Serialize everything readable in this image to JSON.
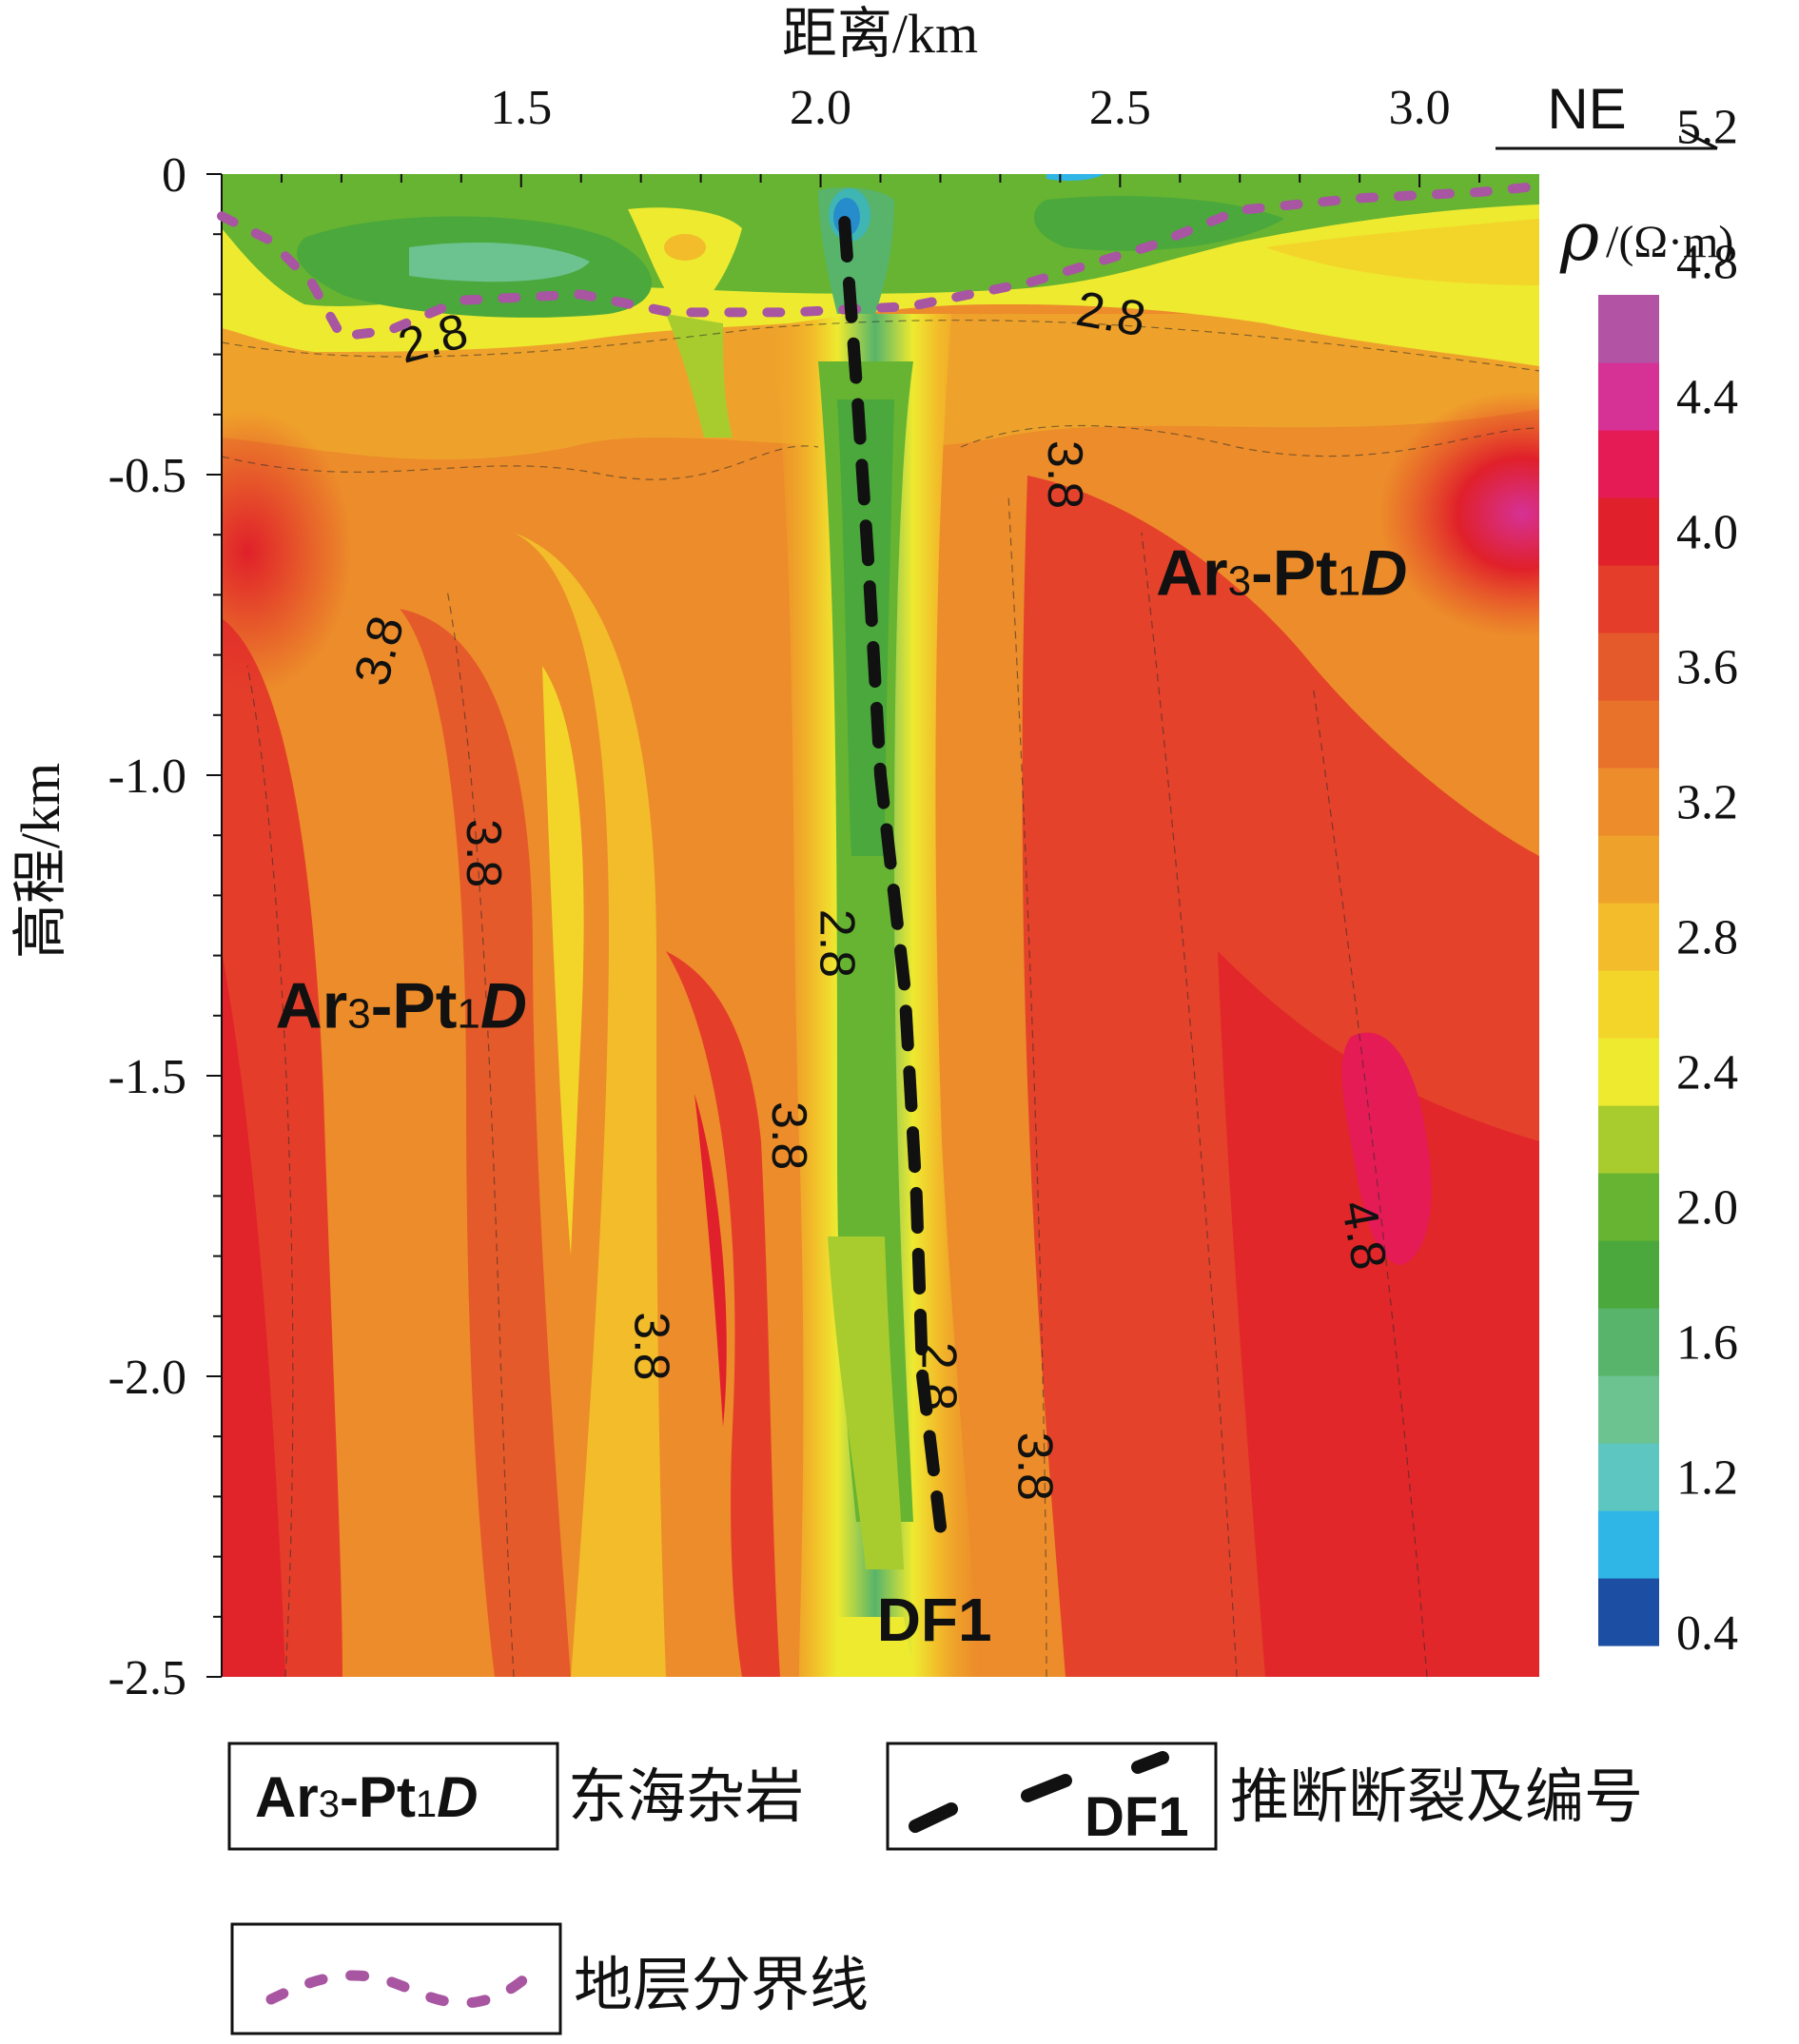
{
  "chart_data": {
    "type": "heatmap",
    "title": "",
    "x_axis": {
      "label": "距离/km",
      "ticks": [
        "1.5",
        "2.0",
        "2.5",
        "3.0"
      ],
      "tick_values": [
        1.5,
        2.0,
        2.5,
        3.0
      ],
      "range": [
        1.0,
        3.2
      ],
      "direction_label": "NE"
    },
    "y_axis": {
      "label": "高程/km",
      "ticks": [
        "0",
        "-0.5",
        "-1.0",
        "-1.5",
        "-2.0",
        "-2.5"
      ],
      "tick_values": [
        0,
        -0.5,
        -1.0,
        -1.5,
        -2.0,
        -2.5
      ],
      "range": [
        -2.5,
        0
      ]
    },
    "colorbar": {
      "label_symbol": "ρ",
      "label_unit": "/(Ω·m)",
      "tick_labels": [
        "0.4",
        "1.2",
        "1.6",
        "2.0",
        "2.4",
        "2.8",
        "3.2",
        "3.6",
        "4.0",
        "4.4",
        "4.8",
        "5.2"
      ],
      "tick_values": [
        0.4,
        1.2,
        1.6,
        2.0,
        2.4,
        2.8,
        3.2,
        3.6,
        4.0,
        4.4,
        4.8,
        5.2
      ],
      "colors": [
        "#1c4fa3",
        "#2fb5e6",
        "#5ec6c0",
        "#6cc38f",
        "#58b46a",
        "#4aa83c",
        "#66b432",
        "#a8cc2e",
        "#eeea30",
        "#f3d52a",
        "#f2bc2a",
        "#efa22b",
        "#ec8c2a",
        "#e8722a",
        "#e55a2a",
        "#e43e2a",
        "#e0202a",
        "#e51b56",
        "#d63195",
        "#b254a3"
      ]
    },
    "contour_labels": [
      {
        "text": "2.8",
        "x": 1.36,
        "y": -0.3
      },
      {
        "text": "2.8",
        "x": 2.48,
        "y": -0.26
      },
      {
        "text": "3.8",
        "x": 2.38,
        "y": -0.5
      },
      {
        "text": "3.8",
        "x": 1.29,
        "y": -0.8
      },
      {
        "text": "3.8",
        "x": 1.41,
        "y": -1.13
      },
      {
        "text": "2.8",
        "x": 2.0,
        "y": -1.28
      },
      {
        "text": "3.8",
        "x": 1.92,
        "y": -1.6
      },
      {
        "text": "4.8",
        "x": 2.88,
        "y": -1.77
      },
      {
        "text": "3.8",
        "x": 1.69,
        "y": -1.95
      },
      {
        "text": "2.8",
        "x": 2.17,
        "y": -2.0
      },
      {
        "text": "3.8",
        "x": 2.33,
        "y": -2.15
      }
    ],
    "unit_labels": [
      {
        "main": "Ar",
        "sub1": "3",
        "mid": "-Pt",
        "sub2": "1",
        "ital": "D",
        "x": 2.56,
        "y": -0.7
      },
      {
        "main": "Ar",
        "sub1": "3",
        "mid": "-Pt",
        "sub2": "1",
        "ital": "D",
        "x": 1.09,
        "y": -1.42
      }
    ],
    "fault": {
      "label": "DF1",
      "label_x": 2.19,
      "label_y": -2.44,
      "path": [
        {
          "x": 2.04,
          "y": -0.08
        },
        {
          "x": 2.06,
          "y": -0.35
        },
        {
          "x": 2.08,
          "y": -0.65
        },
        {
          "x": 2.1,
          "y": -1.0
        },
        {
          "x": 2.14,
          "y": -1.35
        },
        {
          "x": 2.16,
          "y": -1.7
        },
        {
          "x": 2.17,
          "y": -2.0
        },
        {
          "x": 2.2,
          "y": -2.25
        }
      ]
    },
    "stratum_boundary": [
      {
        "x": 1.0,
        "y": -0.07
      },
      {
        "x": 1.08,
        "y": -0.11
      },
      {
        "x": 1.15,
        "y": -0.18
      },
      {
        "x": 1.2,
        "y": -0.27
      },
      {
        "x": 1.28,
        "y": -0.26
      },
      {
        "x": 1.4,
        "y": -0.21
      },
      {
        "x": 1.6,
        "y": -0.2
      },
      {
        "x": 1.75,
        "y": -0.23
      },
      {
        "x": 1.95,
        "y": -0.23
      },
      {
        "x": 2.15,
        "y": -0.22
      },
      {
        "x": 2.35,
        "y": -0.18
      },
      {
        "x": 2.55,
        "y": -0.12
      },
      {
        "x": 2.7,
        "y": -0.06
      },
      {
        "x": 2.9,
        "y": -0.04
      },
      {
        "x": 3.1,
        "y": -0.03
      },
      {
        "x": 3.2,
        "y": -0.02
      }
    ]
  },
  "legend": {
    "items": [
      {
        "key": "unit",
        "symbol_main": "Ar",
        "symbol_sub1": "3",
        "symbol_mid": "-Pt",
        "symbol_sub2": "1",
        "symbol_ital": "D",
        "text": "东海杂岩"
      },
      {
        "key": "fault",
        "symbol_label": "DF1",
        "text": "推断断裂及编号"
      },
      {
        "key": "boundary",
        "text": "地层分界线"
      }
    ]
  }
}
